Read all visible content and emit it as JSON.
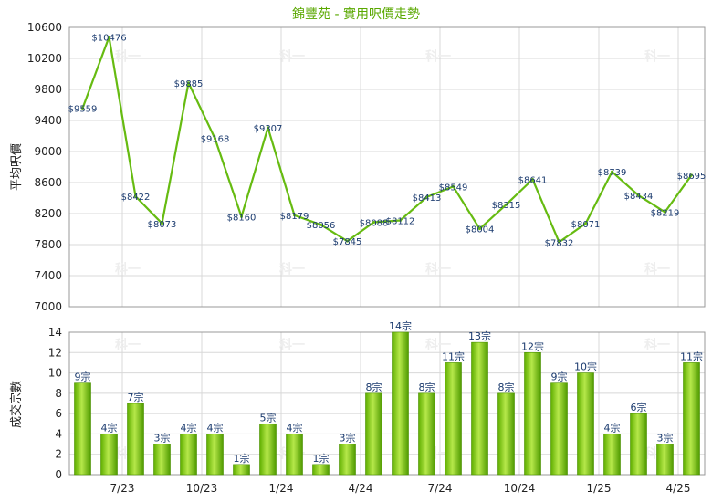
{
  "chart_data": [
    {
      "type": "line",
      "title": "錦豐苑 - 實用呎價走勢",
      "ylabel": "平均呎價",
      "ylim": [
        7000,
        10600
      ],
      "yticks": [
        7000,
        7400,
        7800,
        8200,
        8600,
        9000,
        9400,
        9800,
        10200,
        10600
      ],
      "x_tick_labels": [
        "7/23",
        "10/23",
        "1/24",
        "4/24",
        "7/24",
        "10/24",
        "1/25",
        "4/25"
      ],
      "grid": true,
      "series": [
        {
          "values": [
            9559,
            10476,
            8422,
            8073,
            9885,
            9168,
            8160,
            9307,
            8179,
            8056,
            7845,
            8088,
            8112,
            8413,
            8549,
            8004,
            8315,
            8641,
            7832,
            8071,
            8739,
            8434,
            8219,
            8695
          ],
          "labels": [
            "$9559",
            "$10476",
            "$8422",
            "$8073",
            "$9885",
            "$9168",
            "$8160",
            "$9307",
            "$8179",
            "$8056",
            "$7845",
            "$8088",
            "$8112",
            "$8413",
            "$8549",
            "$8004",
            "$8315",
            "$8641",
            "$7832",
            "$8071",
            "$8739",
            "$8434",
            "$8219",
            "$8695"
          ],
          "color": "#66bb11"
        }
      ]
    },
    {
      "type": "bar",
      "ylabel": "成交宗數",
      "ylim": [
        0,
        14
      ],
      "yticks": [
        0,
        2,
        4,
        6,
        8,
        10,
        12,
        14
      ],
      "x_tick_labels": [
        "7/23",
        "10/23",
        "1/24",
        "4/24",
        "7/24",
        "10/24",
        "1/25",
        "4/25"
      ],
      "grid": true,
      "series": [
        {
          "values": [
            9,
            4,
            7,
            3,
            4,
            4,
            1,
            5,
            4,
            1,
            3,
            8,
            14,
            8,
            11,
            13,
            8,
            12,
            9,
            10,
            4,
            6,
            3,
            11
          ],
          "labels": [
            "9宗",
            "4宗",
            "7宗",
            "3宗",
            "4宗",
            "4宗",
            "1宗",
            "5宗",
            "4宗",
            "1宗",
            "3宗",
            "8宗",
            "14宗",
            "8宗",
            "11宗",
            "13宗",
            "8宗",
            "12宗",
            "9宗",
            "10宗",
            "4宗",
            "6宗",
            "3宗",
            "11宗"
          ],
          "color": "#7ac90e"
        }
      ]
    }
  ],
  "watermark": "科一"
}
